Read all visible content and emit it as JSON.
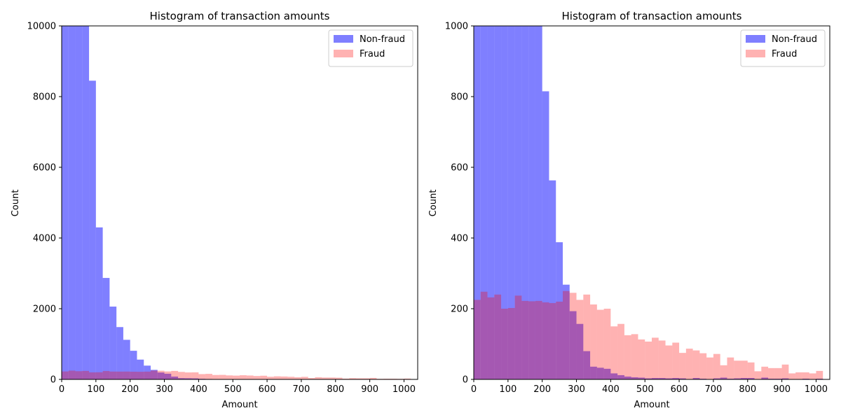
{
  "chart_data": [
    {
      "type": "bar",
      "subtype": "overlapping-histogram",
      "title": "Histogram of transaction amounts",
      "xlabel": "Amount",
      "ylabel": "Count",
      "xlim": [
        0,
        1040
      ],
      "ylim": [
        0,
        10000
      ],
      "xticks": [
        0,
        100,
        200,
        300,
        400,
        500,
        600,
        700,
        800,
        900,
        1000
      ],
      "yticks": [
        0,
        2000,
        4000,
        6000,
        8000,
        10000
      ],
      "bin_width": 20,
      "grid": false,
      "legend": {
        "placement": "top-right",
        "entries": [
          "Non-fraud",
          "Fraud"
        ]
      },
      "series": [
        {
          "name": "Non-fraud",
          "color": "#0000ff",
          "opacity": 0.5,
          "bins": [
            [
              0,
              10000
            ],
            [
              20,
              10000
            ],
            [
              40,
              10000
            ],
            [
              60,
              10000
            ],
            [
              80,
              8450
            ],
            [
              100,
              4300
            ],
            [
              120,
              2870
            ],
            [
              140,
              2060
            ],
            [
              160,
              1480
            ],
            [
              180,
              1120
            ],
            [
              200,
              810
            ],
            [
              220,
              560
            ],
            [
              240,
              390
            ],
            [
              260,
              270
            ],
            [
              280,
              195
            ],
            [
              300,
              160
            ],
            [
              320,
              80
            ],
            [
              340,
              36
            ],
            [
              360,
              33
            ],
            [
              380,
              30
            ],
            [
              400,
              17
            ],
            [
              420,
              12
            ],
            [
              440,
              8
            ],
            [
              460,
              6
            ],
            [
              480,
              5
            ],
            [
              500,
              4
            ],
            [
              520,
              4
            ],
            [
              540,
              4
            ],
            [
              560,
              3
            ],
            [
              580,
              3
            ],
            [
              600,
              3
            ],
            [
              620,
              2
            ],
            [
              640,
              2
            ],
            [
              660,
              2
            ],
            [
              680,
              2
            ],
            [
              700,
              2
            ],
            [
              720,
              2
            ],
            [
              740,
              2
            ],
            [
              760,
              2
            ],
            [
              780,
              2
            ],
            [
              800,
              2
            ],
            [
              820,
              1
            ],
            [
              840,
              2
            ],
            [
              860,
              1
            ],
            [
              880,
              1
            ],
            [
              900,
              1
            ],
            [
              920,
              1
            ],
            [
              940,
              1
            ],
            [
              960,
              1
            ],
            [
              980,
              1
            ],
            [
              1000,
              1
            ]
          ]
        },
        {
          "name": "Fraud",
          "color": "#ff0000",
          "opacity": 0.3,
          "bins": [
            [
              0,
              225
            ],
            [
              20,
              248
            ],
            [
              40,
              232
            ],
            [
              60,
              240
            ],
            [
              80,
              200
            ],
            [
              100,
              202
            ],
            [
              120,
              237
            ],
            [
              140,
              222
            ],
            [
              160,
              221
            ],
            [
              180,
              222
            ],
            [
              200,
              218
            ],
            [
              220,
              216
            ],
            [
              240,
              220
            ],
            [
              260,
              250
            ],
            [
              280,
              245
            ],
            [
              300,
              225
            ],
            [
              320,
              240
            ],
            [
              340,
              212
            ],
            [
              360,
              197
            ],
            [
              380,
              200
            ],
            [
              400,
              150
            ],
            [
              420,
              157
            ],
            [
              440,
              125
            ],
            [
              460,
              128
            ],
            [
              480,
              113
            ],
            [
              500,
              107
            ],
            [
              520,
              118
            ],
            [
              540,
              110
            ],
            [
              560,
              96
            ],
            [
              580,
              104
            ],
            [
              600,
              75
            ],
            [
              620,
              87
            ],
            [
              640,
              82
            ],
            [
              660,
              74
            ],
            [
              680,
              62
            ],
            [
              700,
              72
            ],
            [
              720,
              40
            ],
            [
              740,
              62
            ],
            [
              760,
              53
            ],
            [
              780,
              53
            ],
            [
              800,
              48
            ],
            [
              820,
              23
            ],
            [
              840,
              36
            ],
            [
              860,
              32
            ],
            [
              880,
              32
            ],
            [
              900,
              42
            ],
            [
              920,
              17
            ],
            [
              940,
              20
            ],
            [
              960,
              20
            ],
            [
              980,
              17
            ],
            [
              1000,
              24
            ]
          ]
        }
      ]
    },
    {
      "type": "bar",
      "subtype": "overlapping-histogram",
      "title": "Histogram of transaction amounts",
      "xlabel": "Amount",
      "ylabel": "Count",
      "xlim": [
        0,
        1040
      ],
      "ylim": [
        0,
        1000
      ],
      "xticks": [
        0,
        100,
        200,
        300,
        400,
        500,
        600,
        700,
        800,
        900,
        1000
      ],
      "yticks": [
        0,
        200,
        400,
        600,
        800,
        1000
      ],
      "bin_width": 20,
      "grid": false,
      "legend": {
        "placement": "top-right",
        "entries": [
          "Non-fraud",
          "Fraud"
        ]
      },
      "series": [
        {
          "name": "Non-fraud",
          "color": "#0000ff",
          "opacity": 0.5,
          "bins": [
            [
              0,
              1000
            ],
            [
              20,
              1000
            ],
            [
              40,
              1000
            ],
            [
              60,
              1000
            ],
            [
              80,
              1000
            ],
            [
              100,
              1000
            ],
            [
              120,
              1000
            ],
            [
              140,
              1000
            ],
            [
              160,
              1000
            ],
            [
              180,
              1000
            ],
            [
              200,
              815
            ],
            [
              220,
              563
            ],
            [
              240,
              388
            ],
            [
              260,
              268
            ],
            [
              280,
              193
            ],
            [
              300,
              157
            ],
            [
              320,
              80
            ],
            [
              340,
              36
            ],
            [
              360,
              33
            ],
            [
              380,
              30
            ],
            [
              400,
              17
            ],
            [
              420,
              12
            ],
            [
              440,
              8
            ],
            [
              460,
              6
            ],
            [
              480,
              5
            ],
            [
              500,
              3
            ],
            [
              520,
              4
            ],
            [
              540,
              4
            ],
            [
              560,
              3
            ],
            [
              580,
              4
            ],
            [
              600,
              3
            ],
            [
              620,
              1
            ],
            [
              640,
              4
            ],
            [
              660,
              2
            ],
            [
              680,
              1
            ],
            [
              700,
              3
            ],
            [
              720,
              5
            ],
            [
              740,
              2
            ],
            [
              760,
              3
            ],
            [
              780,
              4
            ],
            [
              800,
              4
            ],
            [
              820,
              1
            ],
            [
              840,
              5
            ],
            [
              860,
              2
            ],
            [
              880,
              2
            ],
            [
              900,
              3
            ],
            [
              920,
              1
            ],
            [
              940,
              1
            ],
            [
              960,
              2
            ],
            [
              980,
              1
            ],
            [
              1000,
              2
            ]
          ]
        },
        {
          "name": "Fraud",
          "color": "#ff0000",
          "opacity": 0.3,
          "bins": [
            [
              0,
              225
            ],
            [
              20,
              248
            ],
            [
              40,
              232
            ],
            [
              60,
              240
            ],
            [
              80,
              200
            ],
            [
              100,
              202
            ],
            [
              120,
              237
            ],
            [
              140,
              222
            ],
            [
              160,
              221
            ],
            [
              180,
              222
            ],
            [
              200,
              218
            ],
            [
              220,
              216
            ],
            [
              240,
              220
            ],
            [
              260,
              250
            ],
            [
              280,
              245
            ],
            [
              300,
              225
            ],
            [
              320,
              240
            ],
            [
              340,
              212
            ],
            [
              360,
              197
            ],
            [
              380,
              200
            ],
            [
              400,
              150
            ],
            [
              420,
              157
            ],
            [
              440,
              125
            ],
            [
              460,
              128
            ],
            [
              480,
              113
            ],
            [
              500,
              107
            ],
            [
              520,
              118
            ],
            [
              540,
              110
            ],
            [
              560,
              96
            ],
            [
              580,
              104
            ],
            [
              600,
              75
            ],
            [
              620,
              87
            ],
            [
              640,
              82
            ],
            [
              660,
              74
            ],
            [
              680,
              62
            ],
            [
              700,
              72
            ],
            [
              720,
              40
            ],
            [
              740,
              62
            ],
            [
              760,
              53
            ],
            [
              780,
              53
            ],
            [
              800,
              48
            ],
            [
              820,
              23
            ],
            [
              840,
              36
            ],
            [
              860,
              32
            ],
            [
              880,
              32
            ],
            [
              900,
              42
            ],
            [
              920,
              17
            ],
            [
              940,
              20
            ],
            [
              960,
              20
            ],
            [
              980,
              17
            ],
            [
              1000,
              24
            ]
          ]
        }
      ]
    }
  ]
}
